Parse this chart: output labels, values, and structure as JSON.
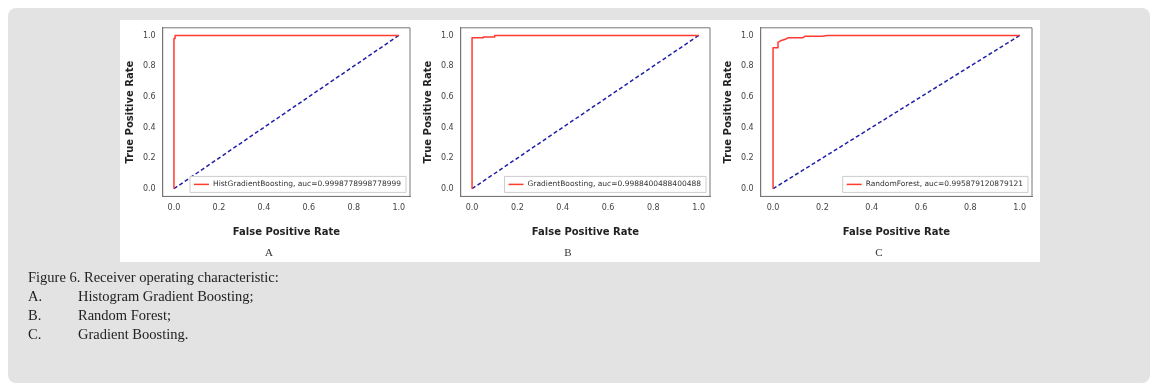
{
  "chart_data": [
    {
      "type": "line",
      "xlabel": "False Positive Rate",
      "ylabel": "True Positive Rate",
      "annotations": [
        "A"
      ],
      "xlim": [
        -0.05,
        1.05
      ],
      "ylim": [
        -0.05,
        1.05
      ],
      "xticks": [
        {
          "value": 0,
          "label": "0.0"
        },
        {
          "value": 0.2,
          "label": "0.2"
        },
        {
          "value": 0.4,
          "label": "0.4"
        },
        {
          "value": 0.6,
          "label": "0.6"
        },
        {
          "value": 0.8,
          "label": "0.8"
        },
        {
          "value": 1,
          "label": "1.0"
        }
      ],
      "yticks": [
        {
          "value": 0,
          "label": "0.0"
        },
        {
          "value": 0.2,
          "label": "0.2"
        },
        {
          "value": 0.4,
          "label": "0.4"
        },
        {
          "value": 0.6,
          "label": "0.6"
        },
        {
          "value": 0.8,
          "label": "0.8"
        },
        {
          "value": 1,
          "label": "1.0"
        }
      ],
      "legend": "bottom right",
      "grid": false,
      "marker": "none",
      "series": [
        {
          "name": "HistGradientBoosting, auc=0.9998778998778999",
          "color": "#ff3b30",
          "line_style": "solid",
          "x": [
            0,
            0,
            0.005,
            0.005,
            1
          ],
          "values": [
            0,
            0.98,
            0.98,
            1,
            1
          ]
        },
        {
          "color": "#1f1fa8",
          "line_style": "dashed",
          "x": [
            0,
            1
          ],
          "values": [
            0,
            1
          ]
        }
      ]
    },
    {
      "type": "line",
      "xlabel": "False Positive Rate",
      "ylabel": "True Positive Rate",
      "annotations": [
        "B"
      ],
      "xlim": [
        -0.05,
        1.05
      ],
      "ylim": [
        -0.05,
        1.05
      ],
      "xticks": [
        {
          "value": 0,
          "label": "0.0"
        },
        {
          "value": 0.2,
          "label": "0.2"
        },
        {
          "value": 0.4,
          "label": "0.4"
        },
        {
          "value": 0.6,
          "label": "0.6"
        },
        {
          "value": 0.8,
          "label": "0.8"
        },
        {
          "value": 1,
          "label": "1.0"
        }
      ],
      "yticks": [
        {
          "value": 0,
          "label": "0.0"
        },
        {
          "value": 0.2,
          "label": "0.2"
        },
        {
          "value": 0.4,
          "label": "0.4"
        },
        {
          "value": 0.6,
          "label": "0.6"
        },
        {
          "value": 0.8,
          "label": "0.8"
        },
        {
          "value": 1,
          "label": "1.0"
        }
      ],
      "legend": "bottom right",
      "grid": false,
      "marker": "none",
      "series": [
        {
          "name": "GradientBoosting, auc=0.9988400488400488",
          "color": "#ff3b30",
          "line_style": "solid",
          "x": [
            0,
            0,
            0.05,
            0.05,
            0.1,
            0.1,
            1
          ],
          "values": [
            0,
            0.985,
            0.985,
            0.99,
            0.99,
            1,
            1
          ]
        },
        {
          "color": "#1f1fa8",
          "line_style": "dashed",
          "x": [
            0,
            1
          ],
          "values": [
            0,
            1
          ]
        }
      ]
    },
    {
      "type": "line",
      "xlabel": "False Positive Rate",
      "ylabel": "True Positive Rate",
      "annotations": [
        "C"
      ],
      "xlim": [
        -0.05,
        1.05
      ],
      "ylim": [
        -0.05,
        1.05
      ],
      "xticks": [
        {
          "value": 0,
          "label": "0.0"
        },
        {
          "value": 0.2,
          "label": "0.2"
        },
        {
          "value": 0.4,
          "label": "0.4"
        },
        {
          "value": 0.6,
          "label": "0.6"
        },
        {
          "value": 0.8,
          "label": "0.8"
        },
        {
          "value": 1,
          "label": "1.0"
        }
      ],
      "yticks": [
        {
          "value": 0,
          "label": "0.0"
        },
        {
          "value": 0.2,
          "label": "0.2"
        },
        {
          "value": 0.4,
          "label": "0.4"
        },
        {
          "value": 0.6,
          "label": "0.6"
        },
        {
          "value": 0.8,
          "label": "0.8"
        },
        {
          "value": 1,
          "label": "1.0"
        }
      ],
      "legend": "bottom right",
      "grid": false,
      "marker": "none",
      "series": [
        {
          "name": "RandomForest, auc=0.995879120879121",
          "color": "#ff3b30",
          "line_style": "solid",
          "x": [
            0,
            0,
            0.02,
            0.02,
            0.03,
            0.05,
            0.06,
            0.12,
            0.13,
            0.2,
            0.22,
            1
          ],
          "values": [
            0,
            0.92,
            0.92,
            0.955,
            0.965,
            0.975,
            0.985,
            0.985,
            0.995,
            0.995,
            1,
            1
          ]
        },
        {
          "color": "#1f1fa8",
          "line_style": "dashed",
          "x": [
            0,
            1
          ],
          "values": [
            0,
            1
          ]
        }
      ]
    },
    {
      "type": "other",
      "title": "Figure 6. Receiver operating characteristic:",
      "annotations": [
        "A.\tHistogram Gradient Boosting;",
        "B.\tRandom Forest;",
        "C.\tGradient Boosting."
      ]
    }
  ]
}
